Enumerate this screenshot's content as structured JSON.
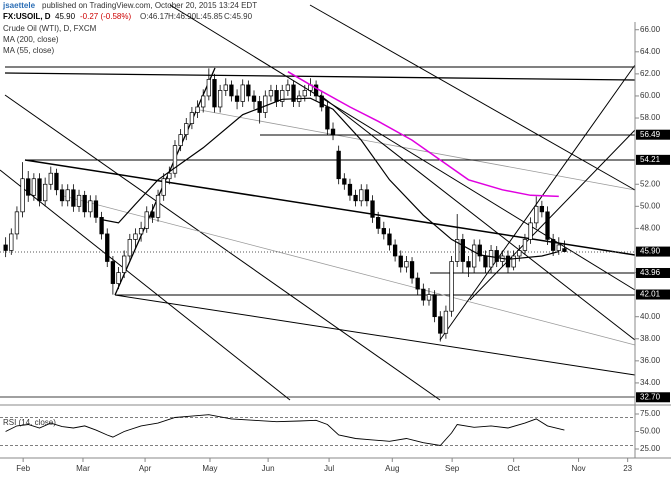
{
  "header": {
    "author": "jsaettele",
    "published": "published on TradingView.com, October 20, 2015 13:24 EDT",
    "symbol": "FX:USOIL, D",
    "last": "45.90",
    "change": "-0.27 (-0.58%)",
    "open": "O:46.17",
    "high": "H:46.90",
    "low": "L:45.85",
    "close": "C:45.90"
  },
  "chart_data": [
    {
      "type": "candlestick",
      "title": "Crude Oil (WTI), D, FXCM",
      "up_color": "#ffffff",
      "down_color": "#000000",
      "ohlc": [
        [
          46.5,
          47.2,
          45.4,
          46.0
        ],
        [
          46.0,
          48.0,
          45.6,
          47.5
        ],
        [
          47.5,
          50.0,
          47.0,
          49.5
        ],
        [
          49.5,
          54.0,
          49.0,
          52.5
        ],
        [
          52.5,
          53.2,
          50.4,
          51.0
        ],
        [
          51.0,
          53.0,
          50.5,
          52.5
        ],
        [
          52.5,
          53.0,
          50.0,
          50.5
        ],
        [
          50.5,
          52.6,
          50.0,
          52.0
        ],
        [
          52.0,
          53.6,
          51.5,
          53.0
        ],
        [
          53.0,
          53.4,
          51.0,
          51.5
        ],
        [
          51.5,
          52.0,
          50.0,
          50.5
        ],
        [
          50.5,
          52.0,
          50.0,
          51.5
        ],
        [
          51.5,
          52.0,
          49.5,
          50.0
        ],
        [
          50.0,
          51.5,
          49.5,
          51.0
        ],
        [
          51.0,
          51.4,
          49.0,
          49.5
        ],
        [
          49.5,
          51.0,
          49.0,
          50.5
        ],
        [
          50.5,
          51.0,
          48.5,
          49.0
        ],
        [
          49.0,
          49.5,
          47.0,
          47.5
        ],
        [
          47.5,
          48.0,
          44.5,
          45.0
        ],
        [
          45.0,
          45.5,
          42.0,
          43.0
        ],
        [
          43.0,
          44.5,
          42.5,
          44.0
        ],
        [
          44.0,
          46.0,
          43.5,
          45.5
        ],
        [
          45.5,
          47.5,
          45.0,
          47.0
        ],
        [
          47.0,
          48.0,
          46.2,
          47.5
        ],
        [
          47.5,
          48.6,
          46.8,
          48.0
        ],
        [
          48.0,
          50.0,
          47.6,
          49.5
        ],
        [
          49.5,
          50.2,
          48.5,
          49.0
        ],
        [
          49.0,
          51.5,
          48.6,
          51.0
        ],
        [
          51.0,
          53.0,
          50.5,
          52.5
        ],
        [
          52.5,
          53.6,
          52.0,
          53.0
        ],
        [
          53.0,
          56.0,
          52.6,
          55.5
        ],
        [
          55.5,
          57.0,
          55.0,
          56.5
        ],
        [
          56.5,
          58.0,
          56.0,
          57.5
        ],
        [
          57.5,
          59.0,
          57.0,
          58.5
        ],
        [
          58.5,
          59.6,
          58.0,
          59.0
        ],
        [
          59.0,
          60.6,
          58.5,
          60.0
        ],
        [
          60.0,
          62.5,
          59.6,
          61.5
        ],
        [
          61.5,
          62.0,
          58.5,
          59.0
        ],
        [
          59.0,
          61.0,
          58.5,
          60.5
        ],
        [
          60.5,
          61.6,
          60.0,
          61.0
        ],
        [
          61.0,
          61.4,
          59.5,
          60.0
        ],
        [
          60.0,
          60.6,
          58.8,
          59.5
        ],
        [
          59.5,
          61.5,
          59.0,
          61.0
        ],
        [
          61.0,
          61.4,
          59.5,
          60.0
        ],
        [
          60.0,
          60.5,
          58.8,
          59.5
        ],
        [
          59.5,
          60.0,
          57.5,
          58.5
        ],
        [
          58.5,
          60.5,
          58.0,
          60.0
        ],
        [
          60.0,
          61.0,
          59.5,
          60.5
        ],
        [
          60.5,
          61.0,
          59.0,
          59.5
        ],
        [
          59.5,
          61.0,
          59.0,
          60.5
        ],
        [
          60.5,
          61.5,
          60.0,
          61.0
        ],
        [
          61.0,
          61.4,
          59.0,
          59.5
        ],
        [
          59.5,
          60.5,
          59.0,
          60.0
        ],
        [
          60.0,
          61.0,
          59.5,
          60.5
        ],
        [
          60.5,
          61.6,
          60.0,
          61.0
        ],
        [
          61.0,
          61.4,
          59.5,
          60.0
        ],
        [
          60.0,
          60.5,
          58.6,
          59.0
        ],
        [
          59.0,
          59.5,
          56.5,
          57.0
        ],
        [
          57.0,
          57.6,
          56.0,
          56.5
        ],
        [
          55.0,
          55.5,
          52.0,
          52.5
        ],
        [
          52.5,
          53.0,
          51.5,
          52.0
        ],
        [
          52.0,
          52.5,
          50.5,
          51.0
        ],
        [
          51.0,
          51.5,
          50.0,
          50.5
        ],
        [
          50.5,
          52.0,
          50.0,
          51.5
        ],
        [
          51.5,
          52.0,
          50.0,
          50.5
        ],
        [
          50.5,
          51.0,
          48.5,
          49.0
        ],
        [
          49.0,
          49.5,
          47.5,
          48.0
        ],
        [
          48.0,
          48.6,
          47.0,
          47.5
        ],
        [
          47.5,
          48.0,
          46.0,
          46.5
        ],
        [
          46.5,
          47.0,
          45.0,
          45.5
        ],
        [
          45.5,
          46.0,
          44.0,
          44.5
        ],
        [
          44.5,
          45.5,
          44.0,
          45.0
        ],
        [
          45.0,
          45.4,
          43.0,
          43.5
        ],
        [
          43.5,
          44.0,
          42.0,
          42.5
        ],
        [
          42.5,
          43.0,
          41.0,
          41.5
        ],
        [
          41.5,
          42.6,
          41.0,
          42.0
        ],
        [
          42.0,
          42.4,
          39.5,
          40.0
        ],
        [
          40.0,
          40.5,
          37.75,
          38.5
        ],
        [
          38.5,
          41.0,
          38.0,
          40.5
        ],
        [
          40.5,
          45.5,
          40.0,
          45.0
        ],
        [
          45.0,
          49.3,
          44.5,
          47.0
        ],
        [
          47.0,
          47.5,
          44.0,
          45.0
        ],
        [
          45.0,
          45.5,
          43.6,
          44.5
        ],
        [
          44.5,
          47.0,
          44.0,
          46.5
        ],
        [
          46.5,
          47.0,
          45.0,
          45.5
        ],
        [
          45.5,
          46.0,
          44.0,
          44.5
        ],
        [
          44.5,
          46.5,
          44.0,
          46.0
        ],
        [
          46.0,
          46.4,
          44.5,
          45.0
        ],
        [
          45.0,
          46.0,
          44.5,
          45.5
        ],
        [
          45.5,
          46.0,
          44.0,
          44.5
        ],
        [
          44.5,
          46.0,
          44.2,
          45.5
        ],
        [
          45.5,
          46.5,
          45.0,
          46.0
        ],
        [
          46.0,
          47.5,
          45.6,
          47.0
        ],
        [
          47.0,
          49.0,
          46.6,
          48.5
        ],
        [
          48.5,
          50.9,
          48.0,
          50.0
        ],
        [
          50.0,
          50.5,
          49.0,
          49.5
        ],
        [
          49.5,
          50.0,
          46.5,
          47.0
        ],
        [
          47.0,
          47.5,
          45.5,
          46.0
        ],
        [
          46.0,
          47.2,
          45.6,
          46.5
        ],
        [
          46.17,
          46.9,
          45.85,
          45.9
        ]
      ],
      "series": [
        {
          "name": "MA (200, close)",
          "color": "#e000e0",
          "x": [
            50,
            55,
            61,
            66,
            72,
            77,
            82,
            88,
            93,
            98
          ],
          "values": [
            62.2,
            60.7,
            59.0,
            57.7,
            56.0,
            54.2,
            52.4,
            51.5,
            51.0,
            50.9
          ]
        },
        {
          "name": "MA (55, close)",
          "color": "#000000",
          "x": [
            17,
            20,
            23,
            27,
            35,
            42,
            49,
            54,
            58,
            63,
            68,
            74,
            79,
            84,
            89,
            95,
            98
          ],
          "values": [
            48.8,
            48.5,
            50.2,
            52.4,
            55.3,
            58.3,
            59.7,
            59.8,
            58.8,
            56.0,
            52.4,
            49.2,
            47.0,
            45.6,
            45.2,
            45.5,
            45.9
          ]
        }
      ],
      "xlim": [
        -1,
        111.5
      ],
      "xticks": [
        {
          "value": 3.1,
          "label": "Feb"
        },
        {
          "value": 13.7,
          "label": "Mar"
        },
        {
          "value": 24.7,
          "label": "Apr"
        },
        {
          "value": 36.2,
          "label": "May"
        },
        {
          "value": 46.5,
          "label": "Jun"
        },
        {
          "value": 57.3,
          "label": "Jul"
        },
        {
          "value": 68.5,
          "label": "Aug"
        },
        {
          "value": 79.1,
          "label": "Sep"
        },
        {
          "value": 90,
          "label": "Oct"
        },
        {
          "value": 101.5,
          "label": "Nov"
        },
        {
          "value": 110.2,
          "label": "23"
        }
      ],
      "ylim": [
        32,
        66.7
      ],
      "yticks": [
        {
          "value": 34,
          "label": "34.00"
        },
        {
          "value": 36,
          "label": "36.00"
        },
        {
          "value": 38,
          "label": "38.00"
        },
        {
          "value": 40,
          "label": "40.00"
        },
        {
          "value": 44,
          "label": "44.00"
        },
        {
          "value": 48,
          "label": "48.00"
        },
        {
          "value": 50,
          "label": "50.00"
        },
        {
          "value": 52,
          "label": "52.00"
        },
        {
          "value": 58,
          "label": "58.00"
        },
        {
          "value": 60,
          "label": "60.00"
        },
        {
          "value": 62,
          "label": "62.00"
        },
        {
          "value": 64,
          "label": "64.00"
        },
        {
          "value": 66,
          "label": "66.00"
        }
      ],
      "price_labels": [
        {
          "value": 56.49,
          "label": "56.49"
        },
        {
          "value": 54.21,
          "label": "54.21"
        },
        {
          "value": 45.9,
          "label": "45.90"
        },
        {
          "value": 43.96,
          "label": "43.96"
        },
        {
          "value": 42.01,
          "label": "42.01"
        },
        {
          "value": 32.7,
          "label": "32.70"
        }
      ]
    },
    {
      "type": "line",
      "title": "RSI (14, close)",
      "color": "#000000",
      "x": [
        0,
        2,
        4,
        6,
        8,
        10,
        12,
        14,
        16,
        18,
        19,
        21,
        24,
        27,
        30,
        33,
        36,
        40,
        44,
        48,
        52,
        55,
        57,
        59,
        62,
        65,
        68,
        71,
        74,
        77,
        79,
        80,
        83,
        86,
        89,
        92,
        94,
        96,
        99
      ],
      "values": [
        50,
        58,
        60,
        55,
        62,
        57,
        55,
        58,
        52,
        45,
        42,
        50,
        58,
        62,
        70,
        72,
        74,
        68,
        66,
        64,
        65,
        66,
        60,
        45,
        40,
        38,
        36,
        40,
        34,
        30,
        48,
        60,
        56,
        58,
        55,
        62,
        68,
        58,
        52
      ],
      "xlim": [
        -1,
        111.5
      ],
      "ylim": [
        20,
        80
      ],
      "yticks": [
        {
          "value": 75,
          "label": "75.00"
        },
        {
          "value": 50,
          "label": "50.00"
        },
        {
          "value": 25,
          "label": "25.00"
        }
      ],
      "bands": [
        70,
        30
      ]
    }
  ]
}
